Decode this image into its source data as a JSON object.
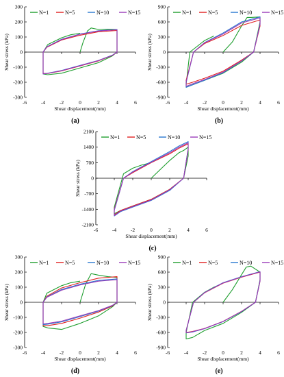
{
  "chart_data": [
    {
      "type": "line",
      "panel_label": "(a)",
      "xlabel": "Shear displacement(mm)",
      "ylabel": "Shear stress (kPa)",
      "xlim": [
        -6,
        6
      ],
      "ylim": [
        -300,
        300
      ],
      "xticks": [
        -6,
        -4,
        -2,
        0,
        2,
        4,
        6
      ],
      "yticks": [
        -300,
        -200,
        -100,
        0,
        100,
        200,
        300
      ],
      "series": [
        {
          "name": "N=1",
          "color": "#1e9e2e",
          "x": [
            0,
            0.3,
            0.8,
            1.2,
            2,
            3,
            4,
            4,
            3.5,
            2,
            0,
            -2,
            -3.5,
            -4,
            -4,
            -3.5,
            -2,
            -1,
            0
          ],
          "y": [
            0,
            60,
            140,
            160,
            150,
            152,
            150,
            0,
            -25,
            -70,
            -105,
            -140,
            -150,
            -145,
            0,
            50,
            95,
            115,
            125
          ]
        },
        {
          "name": "N=5",
          "color": "#e02020",
          "x": [
            0,
            2,
            4,
            4,
            3.5,
            2,
            0,
            -2,
            -3.5,
            -4,
            -4,
            -3.6,
            -2,
            0
          ],
          "y": [
            112,
            135,
            143,
            0,
            -22,
            -58,
            -92,
            -125,
            -142,
            -142,
            0,
            32,
            80,
            112
          ]
        },
        {
          "name": "N=10",
          "color": "#2878d0",
          "x": [
            0,
            2,
            4,
            4,
            3.5,
            2,
            0,
            -2,
            -3.5,
            -4,
            -4,
            -3.6,
            -2,
            0
          ],
          "y": [
            120,
            142,
            150,
            0,
            -20,
            -55,
            -88,
            -122,
            -140,
            -145,
            0,
            35,
            85,
            120
          ]
        },
        {
          "name": "N=15",
          "color": "#9a3ab8",
          "x": [
            0,
            2,
            4,
            4,
            3.5,
            2,
            0,
            -2,
            -3.5,
            -4,
            -4,
            -3.6,
            -2,
            0
          ],
          "y": [
            118,
            140,
            148,
            0,
            -21,
            -56,
            -90,
            -123,
            -141,
            -144,
            0,
            34,
            83,
            118
          ]
        }
      ]
    },
    {
      "type": "line",
      "panel_label": "(b)",
      "xlabel": "Shear displacement(mm)",
      "ylabel": "Shear stress (kPa)",
      "xlim": [
        -6,
        6
      ],
      "ylim": [
        -900,
        900
      ],
      "xticks": [
        -6,
        -4,
        -2,
        0,
        2,
        4,
        6
      ],
      "yticks": [
        -900,
        -600,
        -300,
        0,
        300,
        600,
        900
      ],
      "series": [
        {
          "name": "N=1",
          "color": "#1e9e2e",
          "x": [
            0,
            1,
            2,
            2.6,
            3,
            4,
            4,
            3.3,
            2,
            0,
            -2,
            -3.3,
            -4,
            -4,
            -3.6,
            -2,
            -1
          ],
          "y": [
            0,
            200,
            520,
            690,
            690,
            700,
            600,
            0,
            -200,
            -420,
            -560,
            -650,
            -700,
            -640,
            0,
            230,
            320
          ]
        },
        {
          "name": "N=5",
          "color": "#e02020",
          "x": [
            0,
            2,
            4,
            4,
            3.3,
            2,
            0,
            -2,
            -3.3,
            -4,
            -4,
            -3.2,
            -2,
            0
          ],
          "y": [
            330,
            530,
            640,
            520,
            0,
            -160,
            -380,
            -520,
            -600,
            -640,
            -560,
            0,
            170,
            330
          ]
        },
        {
          "name": "N=10",
          "color": "#2878d0",
          "x": [
            0,
            2,
            4,
            4,
            3.3,
            2,
            0,
            -2,
            -3.3,
            -4,
            -4,
            -3.2,
            -2,
            0
          ],
          "y": [
            380,
            600,
            700,
            560,
            0,
            -180,
            -410,
            -560,
            -650,
            -700,
            -600,
            0,
            190,
            380
          ]
        },
        {
          "name": "N=15",
          "color": "#9a3ab8",
          "x": [
            0,
            2,
            4,
            4,
            3.3,
            2,
            0,
            -2,
            -3.3,
            -4,
            -4,
            -3.2,
            -2,
            0
          ],
          "y": [
            360,
            580,
            680,
            550,
            0,
            -175,
            -400,
            -545,
            -630,
            -680,
            -590,
            0,
            185,
            360
          ]
        }
      ]
    },
    {
      "type": "line",
      "panel_label": "(c)",
      "xlabel": "Shear displacement(mm)",
      "ylabel": "Shear stress (kPa)",
      "xlim": [
        -6,
        6
      ],
      "ylim": [
        -2100,
        2100
      ],
      "xticks": [
        -6,
        -4,
        -2,
        0,
        2,
        4,
        6
      ],
      "yticks": [
        -2100,
        -1400,
        -700,
        0,
        700,
        1400,
        2100
      ],
      "series": [
        {
          "name": "N=1",
          "color": "#1e9e2e",
          "x": [
            0,
            1,
            2,
            3,
            3.5,
            4,
            4,
            3.5,
            2,
            0,
            -2,
            -3.3,
            -4,
            -4,
            -3,
            -2,
            -1,
            0
          ],
          "y": [
            0,
            400,
            800,
            1150,
            1250,
            1400,
            1000,
            0,
            -500,
            -950,
            -1250,
            -1450,
            -1600,
            -1300,
            200,
            450,
            600,
            700
          ]
        },
        {
          "name": "N=5",
          "color": "#e02020",
          "x": [
            0,
            2,
            3,
            4,
            4,
            3.5,
            2,
            0,
            -2,
            -3.3,
            -4,
            -4,
            -3,
            -2,
            0
          ],
          "y": [
            700,
            1100,
            1350,
            1550,
            1300,
            0,
            -500,
            -950,
            -1250,
            -1450,
            -1650,
            -1400,
            0,
            250,
            700
          ]
        },
        {
          "name": "N=10",
          "color": "#2878d0",
          "x": [
            0,
            2,
            3,
            4,
            4,
            3.5,
            2,
            0,
            -2,
            -3.3,
            -4,
            -4,
            -3,
            -2,
            0
          ],
          "y": [
            750,
            1200,
            1450,
            1650,
            1350,
            0,
            -550,
            -1000,
            -1300,
            -1500,
            -1700,
            -1450,
            0,
            300,
            750
          ]
        },
        {
          "name": "N=15",
          "color": "#9a3ab8",
          "x": [
            0,
            2,
            3,
            4,
            4,
            3.5,
            2,
            0,
            -2,
            -3.3,
            -4,
            -4,
            -3,
            -2,
            0
          ],
          "y": [
            720,
            1150,
            1400,
            1600,
            1320,
            0,
            -520,
            -980,
            -1280,
            -1480,
            -1680,
            -1420,
            0,
            280,
            720
          ]
        }
      ]
    },
    {
      "type": "line",
      "panel_label": "(d)",
      "xlabel": "Shear displacement(mm)",
      "ylabel": "Shear stress (kPa)",
      "xlim": [
        -6,
        6
      ],
      "ylim": [
        -300,
        300
      ],
      "xticks": [
        -6,
        -4,
        -2,
        0,
        2,
        4,
        6
      ],
      "yticks": [
        -300,
        -200,
        -100,
        0,
        100,
        200,
        300
      ],
      "series": [
        {
          "name": "N=1",
          "color": "#1e9e2e",
          "x": [
            0,
            0.6,
            1.2,
            2,
            3,
            4,
            4,
            3.5,
            2,
            0,
            -2,
            -3.5,
            -4,
            -4,
            -3.6,
            -2,
            -1,
            0
          ],
          "y": [
            0,
            120,
            190,
            180,
            170,
            165,
            0,
            -30,
            -90,
            -140,
            -180,
            -170,
            -160,
            0,
            60,
            110,
            130,
            140
          ]
        },
        {
          "name": "N=5",
          "color": "#e02020",
          "x": [
            0,
            2,
            4,
            4,
            3.5,
            2,
            0,
            -2,
            -3.5,
            -4,
            -4,
            -3.6,
            -2,
            0
          ],
          "y": [
            130,
            160,
            170,
            0,
            -25,
            -65,
            -105,
            -140,
            -155,
            -155,
            0,
            40,
            95,
            130
          ]
        },
        {
          "name": "N=10",
          "color": "#2878d0",
          "x": [
            0,
            2,
            4,
            4,
            3.5,
            2,
            0,
            -2,
            -3.5,
            -4,
            -4,
            -3.6,
            -2,
            0
          ],
          "y": [
            120,
            145,
            155,
            0,
            -22,
            -58,
            -95,
            -130,
            -145,
            -148,
            0,
            35,
            85,
            120
          ]
        },
        {
          "name": "N=15",
          "color": "#9a3ab8",
          "x": [
            0,
            2,
            4,
            4,
            3.5,
            2,
            0,
            -2,
            -3.5,
            -4,
            -4,
            -3.6,
            -2,
            0
          ],
          "y": [
            115,
            140,
            150,
            0,
            -20,
            -55,
            -90,
            -125,
            -140,
            -143,
            0,
            33,
            80,
            115
          ]
        }
      ]
    },
    {
      "type": "line",
      "panel_label": "(e)",
      "xlabel": "Shear displacement(mm)",
      "ylabel": "Shear stress (kPa)",
      "xlim": [
        -6,
        6
      ],
      "ylim": [
        -900,
        900
      ],
      "xticks": [
        -6,
        -4,
        -2,
        0,
        2,
        4,
        6
      ],
      "yticks": [
        -900,
        -600,
        -300,
        0,
        300,
        600,
        900
      ],
      "series": [
        {
          "name": "N=1",
          "color": "#1e9e2e",
          "x": [
            0,
            1,
            2,
            2.5,
            3,
            4,
            4,
            3.5,
            2,
            0,
            -2,
            -3.3,
            -4,
            -4,
            -3.3,
            -2,
            -1,
            0
          ],
          "y": [
            0,
            250,
            550,
            700,
            720,
            600,
            450,
            0,
            -200,
            -420,
            -560,
            -700,
            -730,
            -600,
            0,
            200,
            300,
            380
          ]
        },
        {
          "name": "N=5",
          "color": "#e02020",
          "x": [
            0,
            2,
            4,
            4,
            3.5,
            2,
            0,
            -2,
            -3.3,
            -4,
            -4,
            -3.2,
            -2,
            0
          ],
          "y": [
            380,
            500,
            600,
            420,
            0,
            -180,
            -380,
            -520,
            -580,
            -600,
            -560,
            0,
            190,
            380
          ]
        },
        {
          "name": "N=10",
          "color": "#2878d0",
          "x": [
            0,
            2,
            4,
            4,
            3.5,
            2,
            0,
            -2,
            -3.3,
            -4,
            -4,
            -3.2,
            -2,
            0
          ],
          "y": [
            390,
            510,
            610,
            430,
            0,
            -185,
            -385,
            -525,
            -590,
            -610,
            -565,
            0,
            195,
            390
          ]
        },
        {
          "name": "N=15",
          "color": "#9a3ab8",
          "x": [
            0,
            2,
            4,
            4,
            3.5,
            2,
            0,
            -2,
            -3.3,
            -4,
            -4,
            -3.2,
            -2,
            0
          ],
          "y": [
            385,
            505,
            605,
            425,
            0,
            -182,
            -382,
            -522,
            -585,
            -605,
            -562,
            0,
            192,
            385
          ]
        }
      ]
    }
  ]
}
